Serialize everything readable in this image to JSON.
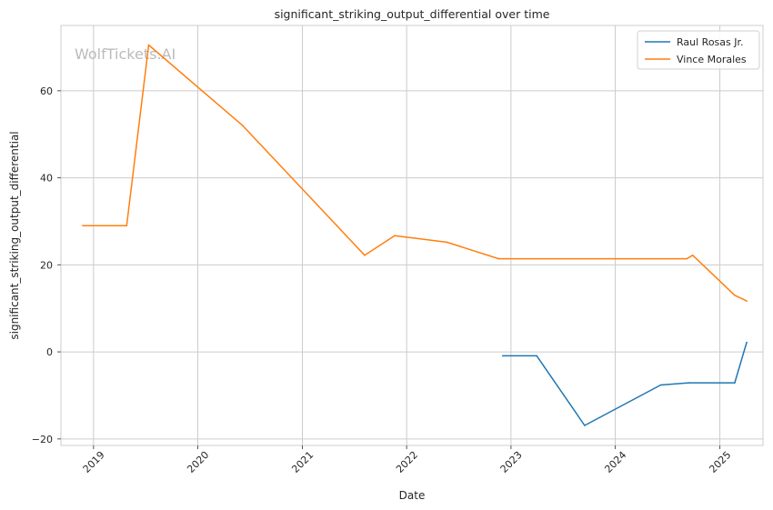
{
  "chart_data": {
    "type": "line",
    "title": "significant_striking_output_differential over time",
    "xlabel": "Date",
    "ylabel": "significant_striking_output_differential",
    "watermark": "WolfTickets.AI",
    "xlim": [
      "2018-09-09",
      "2025-06-01"
    ],
    "ylim": [
      -21.5,
      75.0
    ],
    "x_ticks": [
      "2019-01-01",
      "2020-01-01",
      "2021-01-01",
      "2022-01-01",
      "2023-01-01",
      "2024-01-01",
      "2025-01-01"
    ],
    "x_tick_labels": [
      "2019",
      "2020",
      "2021",
      "2022",
      "2023",
      "2024",
      "2025"
    ],
    "y_ticks": [
      -20,
      0,
      20,
      40,
      60
    ],
    "y_tick_labels": [
      "−20",
      "0",
      "20",
      "40",
      "60"
    ],
    "grid": true,
    "legend_position": "top-right",
    "series": [
      {
        "name": "Raul Rosas Jr.",
        "color": "#1f77b4",
        "points": [
          [
            "2022-12-03",
            -0.9
          ],
          [
            "2023-04-01",
            -0.9
          ],
          [
            "2023-09-16",
            -16.9
          ],
          [
            "2024-06-08",
            -7.6
          ],
          [
            "2024-09-14",
            -7.1
          ],
          [
            "2025-02-22",
            -7.1
          ],
          [
            "2025-04-05",
            2.2
          ]
        ]
      },
      {
        "name": "Vince Morales",
        "color": "#ff7f0e",
        "points": [
          [
            "2018-11-24",
            29.0
          ],
          [
            "2019-04-27",
            29.0
          ],
          [
            "2019-07-13",
            70.5
          ],
          [
            "2020-06-06",
            52.0
          ],
          [
            "2021-08-07",
            22.2
          ],
          [
            "2021-11-20",
            26.7
          ],
          [
            "2022-05-21",
            25.2
          ],
          [
            "2022-11-19",
            21.4
          ],
          [
            "2024-09-07",
            21.4
          ],
          [
            "2024-09-28",
            22.2
          ],
          [
            "2025-02-22",
            13.0
          ],
          [
            "2025-04-05",
            11.7
          ]
        ]
      }
    ]
  }
}
